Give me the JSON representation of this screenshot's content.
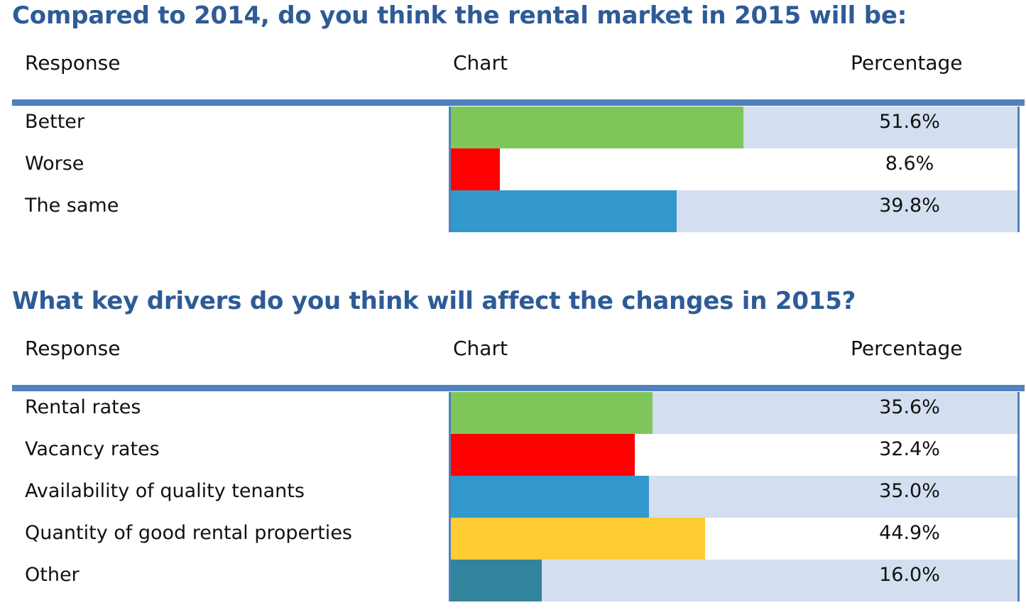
{
  "chart_data": [
    {
      "type": "bar",
      "title": "Compared to 2014, do you think the rental market in 2015 will be:",
      "columns": {
        "response": "Response",
        "chart": "Chart",
        "percentage": "Percentage"
      },
      "categories": [
        "Better",
        "Worse",
        "The same"
      ],
      "values": [
        51.6,
        8.6,
        39.8
      ],
      "value_labels": [
        "51.6%",
        "8.6%",
        "39.8%"
      ],
      "colors": [
        "#7fc65a",
        "#ff0000",
        "#3398cc"
      ],
      "ylim": [
        0,
        100
      ]
    },
    {
      "type": "bar",
      "title": "What key drivers do you think will affect the changes in 2015?",
      "columns": {
        "response": "Response",
        "chart": "Chart",
        "percentage": "Percentage"
      },
      "categories": [
        "Rental rates",
        "Vacancy rates",
        "Availability of quality tenants",
        "Quantity of good rental properties",
        "Other"
      ],
      "values": [
        35.6,
        32.4,
        35.0,
        44.9,
        16.0
      ],
      "value_labels": [
        "35.6%",
        "32.4%",
        "35.0%",
        "44.9%",
        "16.0%"
      ],
      "colors": [
        "#7fc65a",
        "#ff0000",
        "#3398cc",
        "#ffcc33",
        "#31849b"
      ],
      "ylim": [
        0,
        100
      ]
    }
  ]
}
